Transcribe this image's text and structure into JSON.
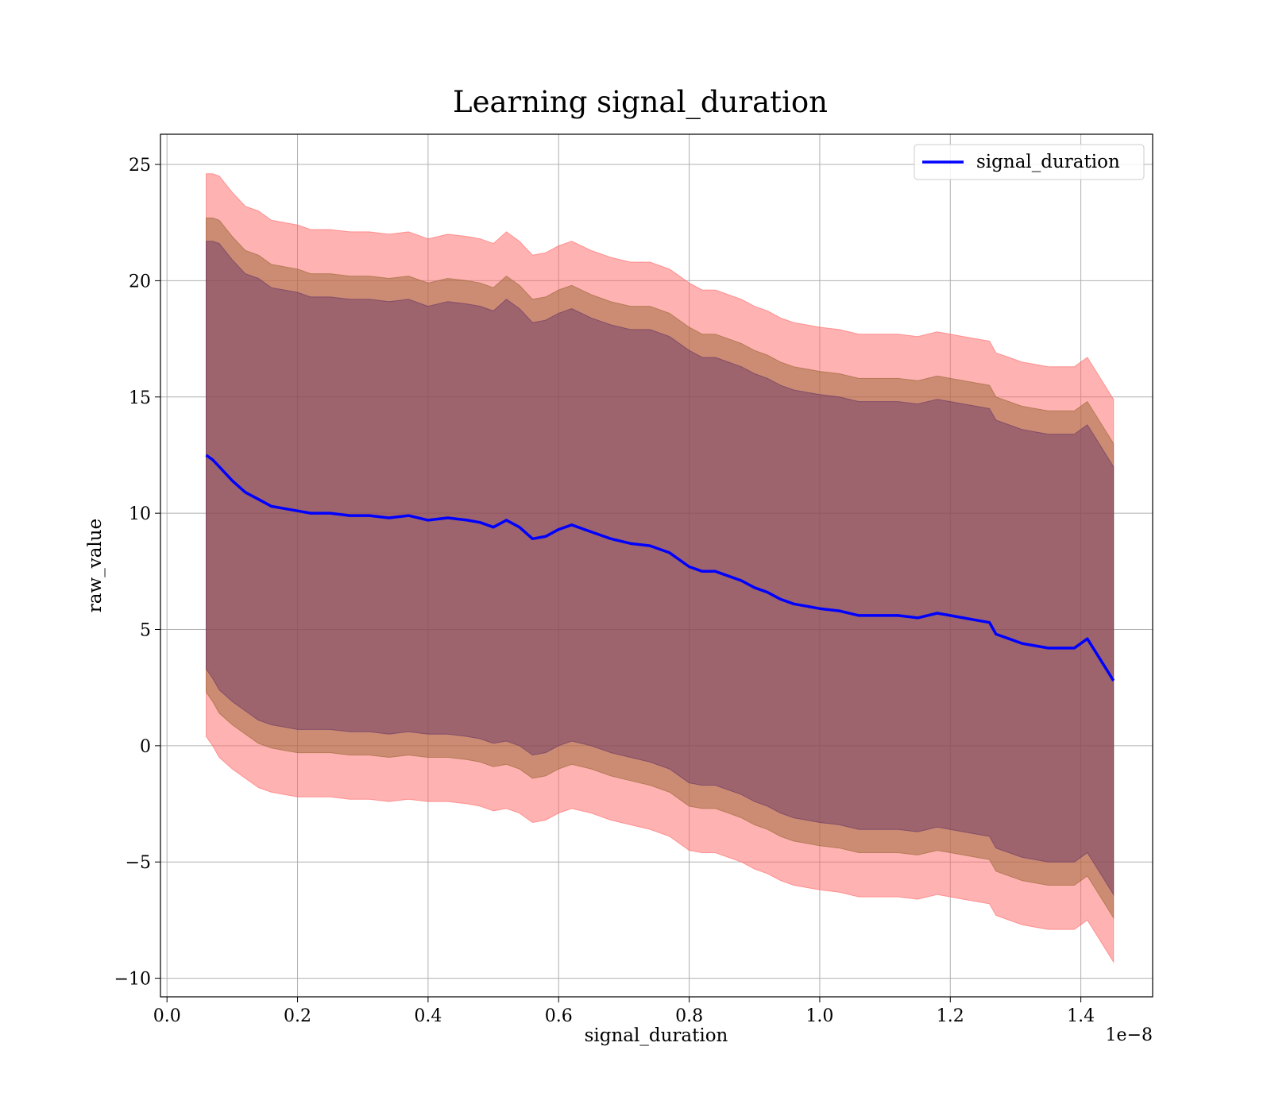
{
  "chart_data": {
    "type": "line",
    "title": "Learning signal_duration",
    "xlabel": "signal_duration",
    "ylabel": "raw_value",
    "x_offset_label": "1e−8",
    "xlim": [
      -0.01,
      1.51
    ],
    "ylim": [
      -10.8,
      26.3
    ],
    "x_ticks": [
      0.0,
      0.2,
      0.4,
      0.6,
      0.8,
      1.0,
      1.2,
      1.4
    ],
    "x_tick_labels": [
      "0.0",
      "0.2",
      "0.4",
      "0.6",
      "0.8",
      "1.0",
      "1.2",
      "1.4"
    ],
    "y_ticks": [
      -10,
      -5,
      0,
      5,
      10,
      15,
      20,
      25
    ],
    "y_tick_labels": [
      "−10",
      "−5",
      "0",
      "5",
      "10",
      "15",
      "20",
      "25"
    ],
    "grid": true,
    "legend_position": "top-right",
    "colors": {
      "line": "#0000ff",
      "band_outer": "#ff6666",
      "band_middle": "#996633",
      "band_inner": "#663366"
    },
    "x": [
      0.06,
      0.07,
      0.08,
      0.1,
      0.12,
      0.14,
      0.16,
      0.18,
      0.2,
      0.22,
      0.25,
      0.28,
      0.31,
      0.34,
      0.37,
      0.4,
      0.43,
      0.46,
      0.48,
      0.5,
      0.52,
      0.54,
      0.56,
      0.58,
      0.6,
      0.62,
      0.65,
      0.68,
      0.71,
      0.74,
      0.77,
      0.8,
      0.82,
      0.84,
      0.86,
      0.88,
      0.9,
      0.92,
      0.94,
      0.96,
      0.98,
      1.0,
      1.03,
      1.06,
      1.09,
      1.12,
      1.15,
      1.18,
      1.2,
      1.22,
      1.24,
      1.26,
      1.27,
      1.29,
      1.31,
      1.33,
      1.35,
      1.37,
      1.39,
      1.41,
      1.43,
      1.45
    ],
    "series": [
      {
        "name": "signal_duration",
        "values": [
          12.5,
          12.3,
          12.0,
          11.4,
          10.9,
          10.6,
          10.3,
          10.2,
          10.1,
          10.0,
          10.0,
          9.9,
          9.9,
          9.8,
          9.9,
          9.7,
          9.8,
          9.7,
          9.6,
          9.4,
          9.7,
          9.4,
          8.9,
          9.0,
          9.3,
          9.5,
          9.2,
          8.9,
          8.7,
          8.6,
          8.3,
          7.7,
          7.5,
          7.5,
          7.3,
          7.1,
          6.8,
          6.6,
          6.3,
          6.1,
          6.0,
          5.9,
          5.8,
          5.6,
          5.6,
          5.6,
          5.5,
          5.7,
          5.6,
          5.5,
          5.4,
          5.3,
          4.8,
          4.6,
          4.4,
          4.3,
          4.2,
          4.2,
          4.2,
          4.6,
          3.7,
          2.8
        ]
      }
    ],
    "bands": [
      {
        "lower": [
          0.4,
          0.0,
          -0.5,
          -1.0,
          -1.4,
          -1.8,
          -2.0,
          -2.1,
          -2.2,
          -2.2,
          -2.2,
          -2.3,
          -2.3,
          -2.4,
          -2.3,
          -2.4,
          -2.4,
          -2.5,
          -2.6,
          -2.8,
          -2.7,
          -2.9,
          -3.3,
          -3.2,
          -2.9,
          -2.7,
          -2.9,
          -3.2,
          -3.4,
          -3.6,
          -3.9,
          -4.5,
          -4.6,
          -4.6,
          -4.8,
          -5.0,
          -5.3,
          -5.5,
          -5.8,
          -6.0,
          -6.1,
          -6.2,
          -6.3,
          -6.5,
          -6.5,
          -6.5,
          -6.6,
          -6.4,
          -6.5,
          -6.6,
          -6.7,
          -6.8,
          -7.3,
          -7.5,
          -7.7,
          -7.8,
          -7.9,
          -7.9,
          -7.9,
          -7.5,
          -8.4,
          -9.3
        ]
      },
      {
        "lower": [
          2.3,
          1.9,
          1.4,
          0.9,
          0.5,
          0.1,
          -0.1,
          -0.2,
          -0.3,
          -0.3,
          -0.3,
          -0.4,
          -0.4,
          -0.5,
          -0.4,
          -0.5,
          -0.5,
          -0.6,
          -0.7,
          -0.9,
          -0.8,
          -1.0,
          -1.4,
          -1.3,
          -1.0,
          -0.8,
          -1.0,
          -1.3,
          -1.5,
          -1.7,
          -2.0,
          -2.6,
          -2.7,
          -2.7,
          -2.9,
          -3.1,
          -3.4,
          -3.6,
          -3.9,
          -4.1,
          -4.2,
          -4.3,
          -4.4,
          -4.6,
          -4.6,
          -4.6,
          -4.7,
          -4.5,
          -4.6,
          -4.7,
          -4.8,
          -4.9,
          -5.4,
          -5.6,
          -5.8,
          -5.9,
          -6.0,
          -6.0,
          -6.0,
          -5.6,
          -6.5,
          -7.4
        ]
      },
      {
        "lower": [
          3.3,
          2.9,
          2.4,
          1.9,
          1.5,
          1.1,
          0.9,
          0.8,
          0.7,
          0.7,
          0.7,
          0.6,
          0.6,
          0.5,
          0.6,
          0.5,
          0.5,
          0.4,
          0.3,
          0.1,
          0.2,
          0.0,
          -0.4,
          -0.3,
          0.0,
          0.2,
          0.0,
          -0.3,
          -0.5,
          -0.7,
          -1.0,
          -1.6,
          -1.7,
          -1.7,
          -1.9,
          -2.1,
          -2.4,
          -2.6,
          -2.9,
          -3.1,
          -3.2,
          -3.3,
          -3.4,
          -3.6,
          -3.6,
          -3.6,
          -3.7,
          -3.5,
          -3.6,
          -3.7,
          -3.8,
          -3.9,
          -4.4,
          -4.6,
          -4.8,
          -4.9,
          -5.0,
          -5.0,
          -5.0,
          -4.6,
          -5.5,
          -6.4
        ]
      }
    ]
  }
}
